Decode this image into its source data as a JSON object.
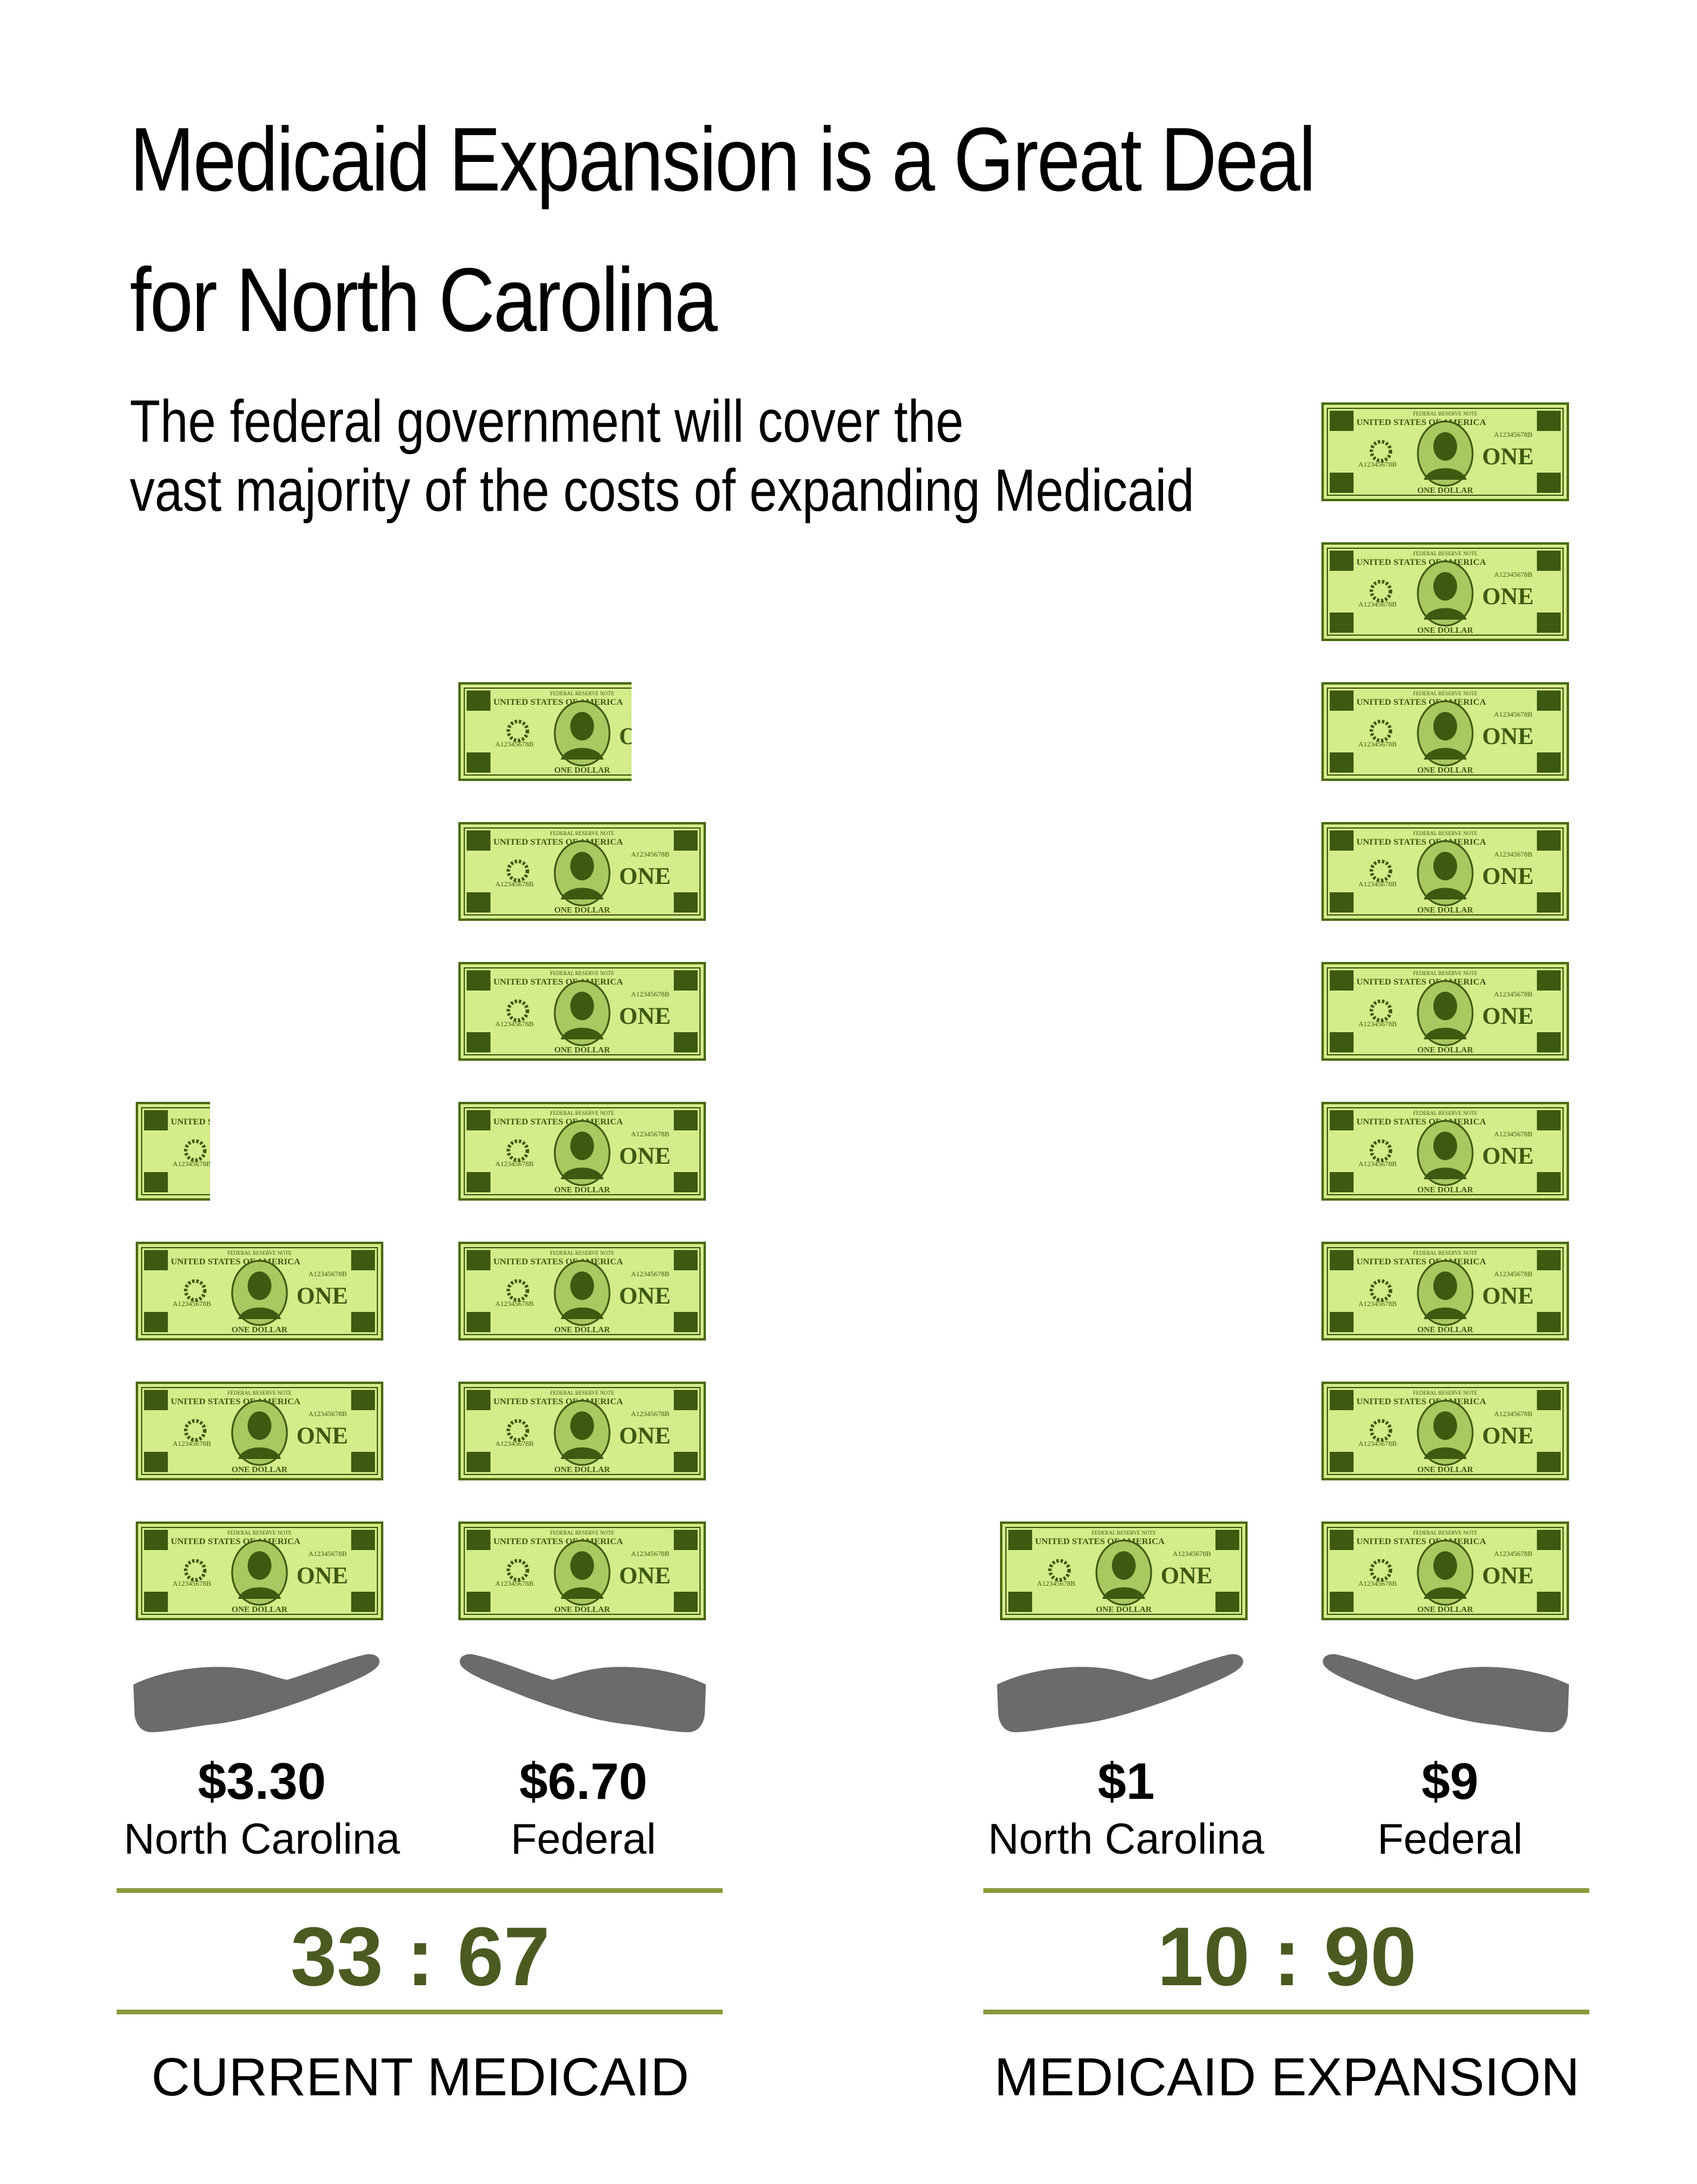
{
  "title_lines": [
    "Medicaid Expansion is a Great Deal",
    "for North Carolina"
  ],
  "subtitle_lines": [
    "The federal government will cover the",
    "vast majority of the costs of expanding Medicaid"
  ],
  "bill_graphic": {
    "icon": "one-dollar-bill-icon",
    "header": "FEDERAL RESERVE NOTE",
    "country": "THE UNITED STATES OF AMERICA",
    "serial": "A12345678B",
    "denomination": "ONE",
    "footer": "ONE DOLLAR"
  },
  "colors": {
    "bill_border": "#4a6a12",
    "bill_fill": "#d4ec8a",
    "bill_dark": "#3d5a10",
    "hand": "#6b6b6b",
    "rule": "#8a9a3a",
    "ratio_text": "#4b5a20"
  },
  "chart_data": [
    {
      "type": "bar",
      "title": "CURRENT MEDICAID",
      "unit": "dollars (one bill = $1)",
      "ratio_text": "33 : 67",
      "series": [
        {
          "name": "North Carolina",
          "value": 3.3,
          "label": "$3.30"
        },
        {
          "name": "Federal",
          "value": 6.7,
          "label": "$6.70"
        }
      ]
    },
    {
      "type": "bar",
      "title": "MEDICAID EXPANSION",
      "unit": "dollars (one bill = $1)",
      "ratio_text": "10 : 90",
      "series": [
        {
          "name": "North Carolina",
          "value": 1,
          "label": "$1"
        },
        {
          "name": "Federal",
          "value": 9,
          "label": "$9"
        }
      ]
    }
  ]
}
